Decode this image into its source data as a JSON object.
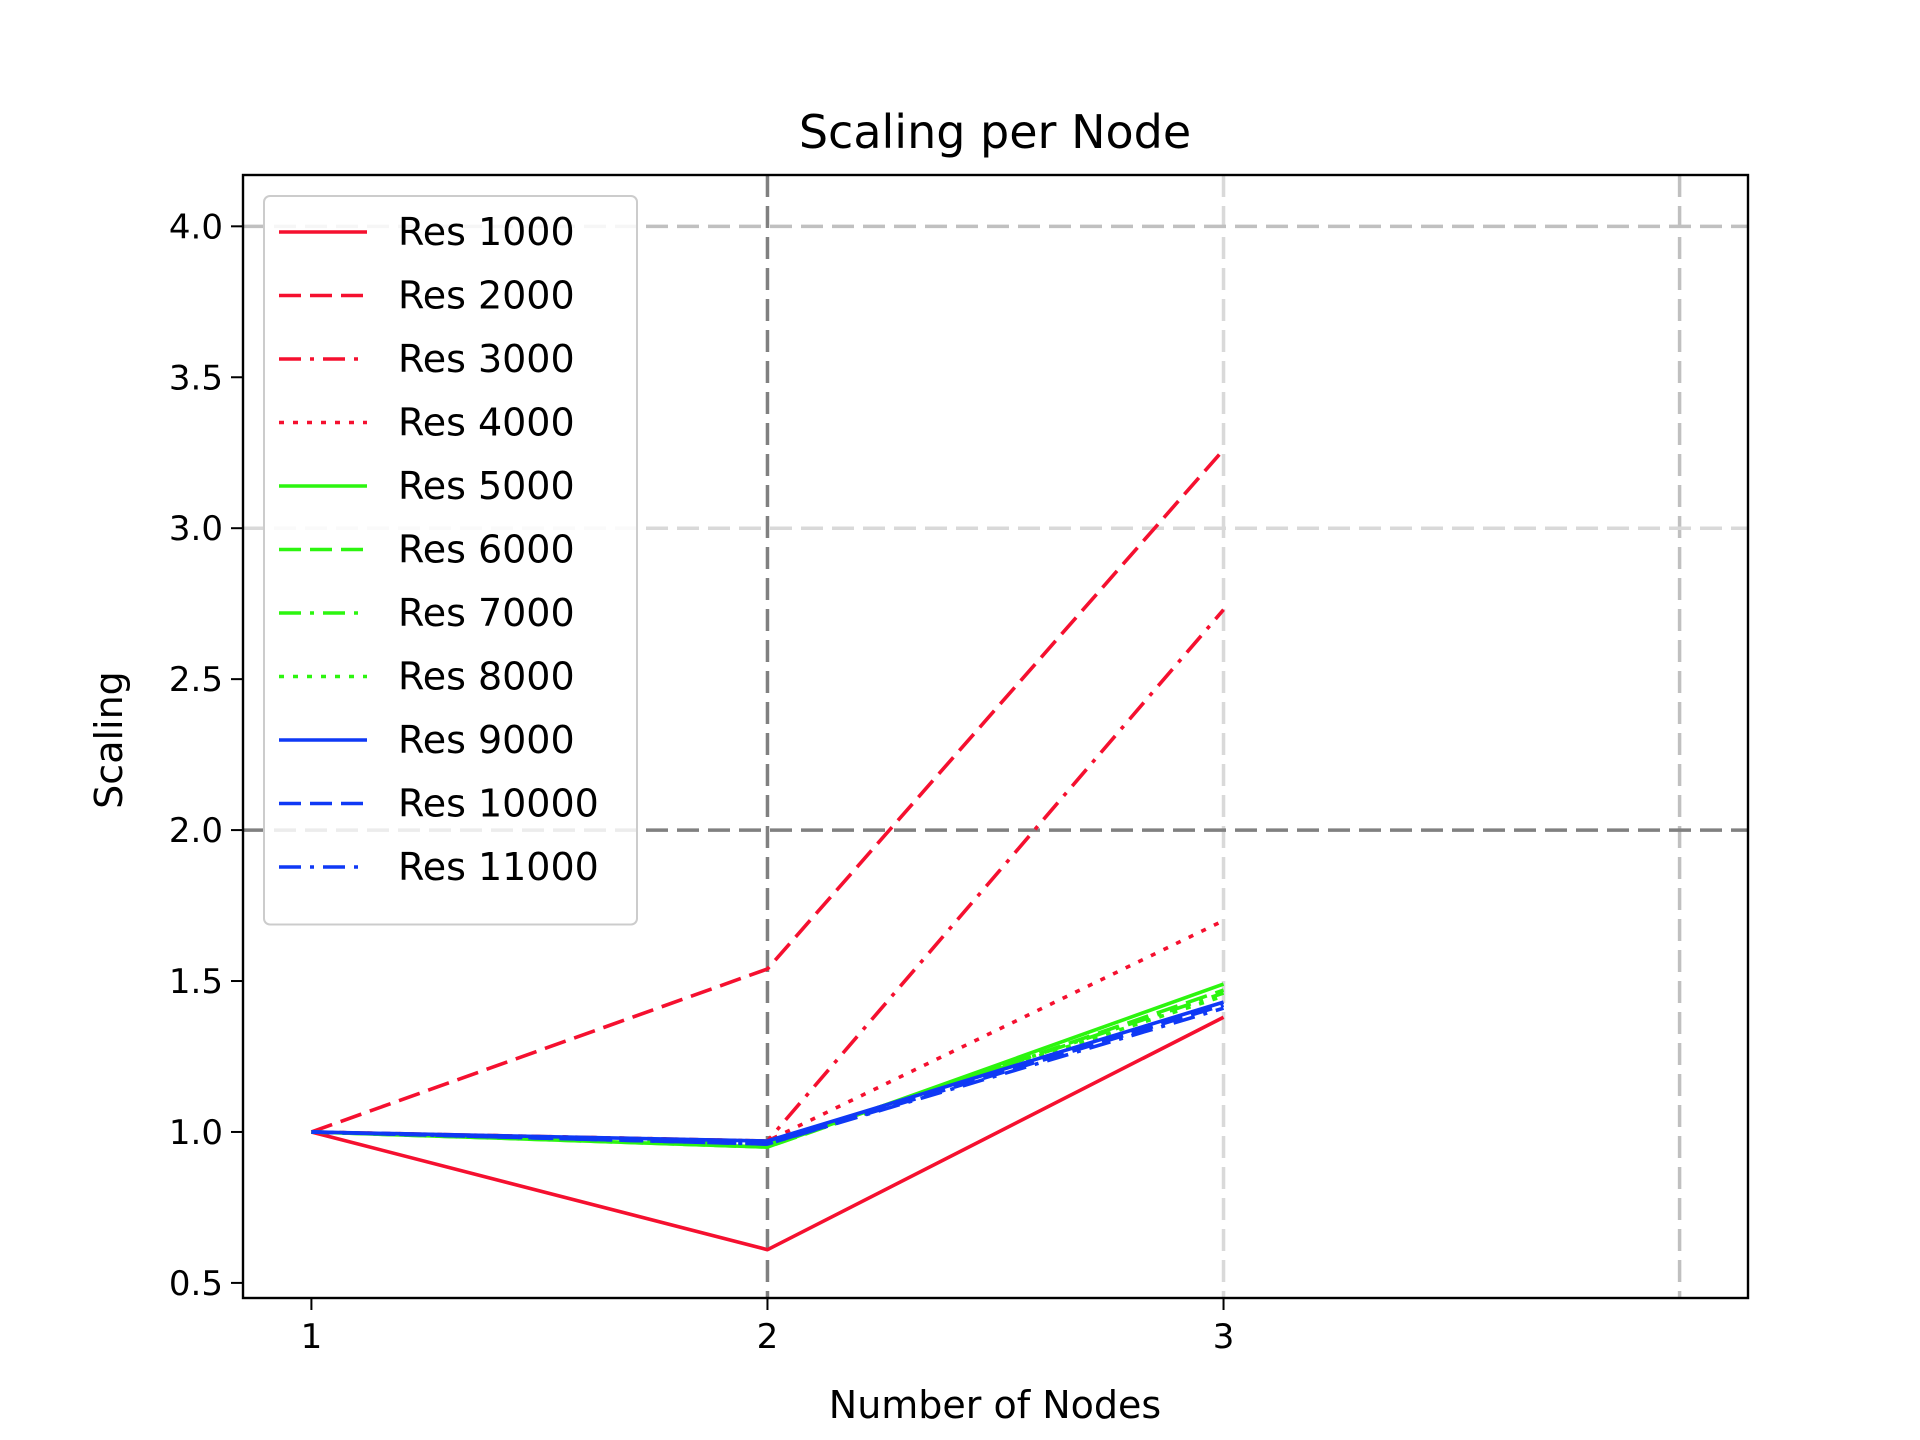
{
  "chart_data": {
    "type": "line",
    "title": "Scaling per Node",
    "xlabel": "Number of Nodes",
    "ylabel": "Scaling",
    "x": [
      1,
      2,
      3
    ],
    "xticks": [
      1,
      2,
      3
    ],
    "yticks": [
      0.5,
      1.0,
      1.5,
      2.0,
      2.5,
      3.0,
      3.5,
      4.0
    ],
    "yticklabels": [
      "0.5",
      "1.0",
      "1.5",
      "2.0",
      "2.5",
      "3.0",
      "3.5",
      "4.0"
    ],
    "xlim": [
      0.85,
      4.15
    ],
    "ylim": [
      0.45,
      4.17
    ],
    "grid": true,
    "reference_lines": [
      {
        "axis": "x",
        "value": 2,
        "emphasis": "dark"
      },
      {
        "axis": "x",
        "value": 3,
        "emphasis": "light"
      },
      {
        "axis": "x",
        "value": 4,
        "emphasis": "medium"
      },
      {
        "axis": "y",
        "value": 2,
        "emphasis": "dark"
      },
      {
        "axis": "y",
        "value": 3,
        "emphasis": "light"
      },
      {
        "axis": "y",
        "value": 4,
        "emphasis": "medium"
      }
    ],
    "legend_position": "top-left",
    "colors": {
      "red": "#f5102f",
      "green": "#2cf50f",
      "blue": "#0f39f5"
    },
    "series": [
      {
        "name": "Res 1000",
        "values": [
          1.0,
          0.61,
          1.38
        ],
        "color": "#f5102f",
        "dash": "solid"
      },
      {
        "name": "Res 2000",
        "values": [
          1.0,
          1.54,
          3.26
        ],
        "color": "#f5102f",
        "dash": "dashed"
      },
      {
        "name": "Res 3000",
        "values": [
          1.0,
          0.97,
          2.73
        ],
        "color": "#f5102f",
        "dash": "dashdot"
      },
      {
        "name": "Res 4000",
        "values": [
          1.0,
          0.97,
          1.7
        ],
        "color": "#f5102f",
        "dash": "dotted"
      },
      {
        "name": "Res 5000",
        "values": [
          1.0,
          0.95,
          1.49
        ],
        "color": "#2cf50f",
        "dash": "solid"
      },
      {
        "name": "Res 6000",
        "values": [
          1.0,
          0.95,
          1.47
        ],
        "color": "#2cf50f",
        "dash": "dashed"
      },
      {
        "name": "Res 7000",
        "values": [
          1.0,
          0.96,
          1.46
        ],
        "color": "#2cf50f",
        "dash": "dashdot"
      },
      {
        "name": "Res 8000",
        "values": [
          1.0,
          0.96,
          1.45
        ],
        "color": "#2cf50f",
        "dash": "dotted"
      },
      {
        "name": "Res 9000",
        "values": [
          1.0,
          0.97,
          1.43
        ],
        "color": "#0f39f5",
        "dash": "solid"
      },
      {
        "name": "Res 10000",
        "values": [
          1.0,
          0.96,
          1.42
        ],
        "color": "#0f39f5",
        "dash": "dashed"
      },
      {
        "name": "Res 11000",
        "values": [
          1.0,
          0.96,
          1.41
        ],
        "color": "#0f39f5",
        "dash": "dashdot"
      }
    ]
  }
}
